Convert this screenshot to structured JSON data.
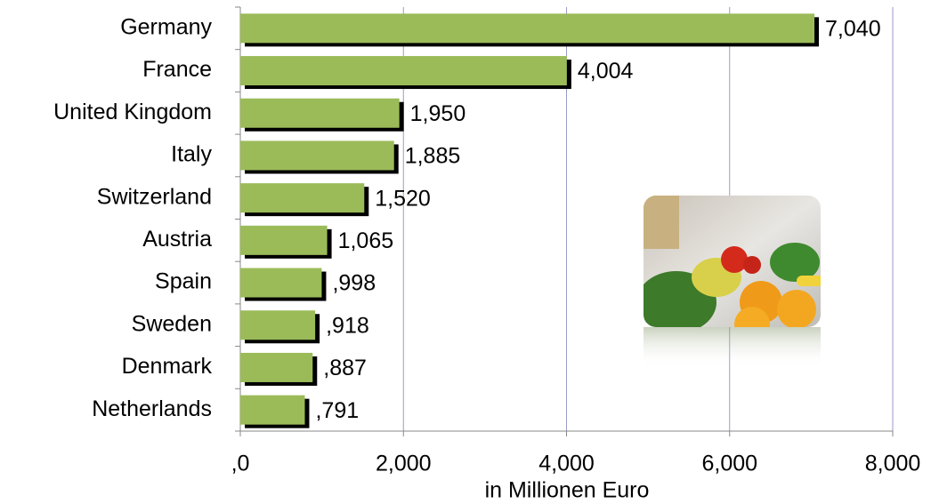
{
  "chart_data": {
    "type": "bar",
    "orientation": "horizontal",
    "x_label": "in Millionen Euro",
    "categories": [
      "Germany",
      "France",
      "United Kingdom",
      "Italy",
      "Switzerland",
      "Austria",
      "Spain",
      "Sweden",
      "Denmark",
      "Netherlands"
    ],
    "values": [
      7040,
      4004,
      1950,
      1885,
      1520,
      1065,
      998,
      918,
      887,
      791
    ],
    "value_labels": [
      "7,040",
      "4,004",
      "1,950",
      "1,885",
      "1,520",
      "1,065",
      ",998",
      ",918",
      ",887",
      ",791"
    ],
    "color": "#9bbb59",
    "xlim": [
      0,
      8000
    ],
    "xticks": [
      {
        "value": 0,
        "label": ",0"
      },
      {
        "value": 2000,
        "label": "2,000"
      },
      {
        "value": 4000,
        "label": "4,000"
      },
      {
        "value": 6000,
        "label": "6,000"
      },
      {
        "value": 8000,
        "label": "8,000"
      }
    ],
    "grid": true
  }
}
